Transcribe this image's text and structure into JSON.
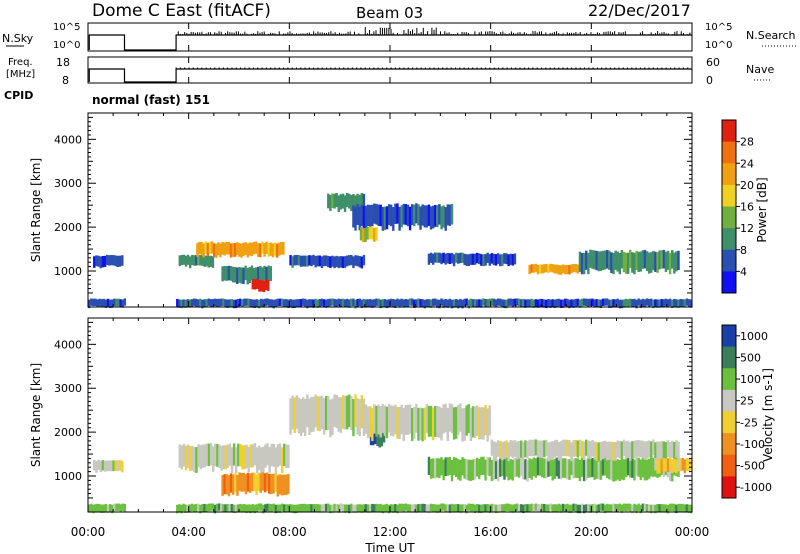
{
  "header": {
    "station": "Dome C East (fitACF)",
    "beam": "Beam 03",
    "date": "22/Dec/2017"
  },
  "strips": {
    "nsky": {
      "label": "N.Sky",
      "ticks": [
        "10^5",
        "10^0"
      ]
    },
    "nsearch": {
      "label": "N.Search",
      "ticks": [
        "10^5",
        "10^0"
      ]
    },
    "freq": {
      "label_line1": "Freq.",
      "label_line2": "[MHz]",
      "ticks": [
        "18",
        "8"
      ]
    },
    "nave": {
      "label": "Nave",
      "ticks": [
        "60",
        "0"
      ]
    },
    "cpid": {
      "label": "CPID",
      "value": "normal (fast) 151"
    }
  },
  "colors": {
    "power": [
      "#1010f0",
      "#2a4fb0",
      "#3f8f6a",
      "#70b040",
      "#f0d020",
      "#f0a010",
      "#f07010",
      "#e02010"
    ],
    "velocity": [
      "#1a3fa8",
      "#3a7f5a",
      "#6cc040",
      "#c8c8c0",
      "#f0d030",
      "#f09020",
      "#f06010",
      "#e01010"
    ]
  },
  "chart_data": [
    {
      "type": "heatmap",
      "title": "Power",
      "xlabel": "Time UT",
      "ylabel": "Slant Range [km]",
      "x_tick_labels": [
        "00:00",
        "04:00",
        "08:00",
        "12:00",
        "16:00",
        "20:00",
        "00:00"
      ],
      "xlim_hours": [
        0,
        24
      ],
      "ylim": [
        180,
        4600
      ],
      "y_ticks": [
        1000,
        2000,
        3000,
        4000
      ],
      "colorbar": {
        "label": "Power [dB]",
        "ticks": [
          "4",
          "8",
          "12",
          "16",
          "20",
          "24",
          "28"
        ],
        "range": [
          0,
          32
        ]
      },
      "data_gap_hours": [
        1.45,
        3.5
      ],
      "echo_regions": [
        {
          "t": [
            0.2,
            1.4
          ],
          "r": [
            1100,
            1350
          ],
          "level": 1
        },
        {
          "t": [
            3.6,
            5.0
          ],
          "r": [
            1100,
            1350
          ],
          "level": 2
        },
        {
          "t": [
            4.3,
            7.8
          ],
          "r": [
            1350,
            1650
          ],
          "level": 5
        },
        {
          "t": [
            5.3,
            7.3
          ],
          "r": [
            750,
            1100
          ],
          "level": 2
        },
        {
          "t": [
            6.5,
            7.2
          ],
          "r": [
            550,
            800
          ],
          "level": 7
        },
        {
          "t": [
            8.0,
            11.0
          ],
          "r": [
            1100,
            1350
          ],
          "level": 1
        },
        {
          "t": [
            9.5,
            11.0
          ],
          "r": [
            2400,
            2750
          ],
          "level": 2
        },
        {
          "t": [
            10.5,
            14.5
          ],
          "r": [
            2000,
            2500
          ],
          "level": 1
        },
        {
          "t": [
            10.8,
            11.5
          ],
          "r": [
            1700,
            2000
          ],
          "level": 4
        },
        {
          "t": [
            13.5,
            17.0
          ],
          "r": [
            1150,
            1400
          ],
          "level": 1
        },
        {
          "t": [
            17.5,
            19.5
          ],
          "r": [
            950,
            1150
          ],
          "level": 5
        },
        {
          "t": [
            19.5,
            23.5
          ],
          "r": [
            1000,
            1450
          ],
          "level": 2
        },
        {
          "t": [
            0.0,
            24.0
          ],
          "r": [
            180,
            360
          ],
          "level": 1
        }
      ]
    },
    {
      "type": "heatmap",
      "title": "Velocity",
      "xlabel": "Time UT",
      "ylabel": "Slant Range [km]",
      "x_tick_labels": [
        "00:00",
        "04:00",
        "08:00",
        "12:00",
        "16:00",
        "20:00",
        "00:00"
      ],
      "xlim_hours": [
        0,
        24
      ],
      "ylim": [
        180,
        4600
      ],
      "y_ticks": [
        1000,
        2000,
        3000,
        4000
      ],
      "colorbar": {
        "label": "Velocity [m s-1]",
        "ticks": [
          "1000",
          "500",
          "100",
          "25",
          "-25",
          "-100",
          "-500",
          "-1000"
        ]
      },
      "data_gap_hours": [
        1.45,
        3.5
      ],
      "echo_regions": [
        {
          "t": [
            0.2,
            1.4
          ],
          "r": [
            1100,
            1350
          ],
          "level": 3
        },
        {
          "t": [
            3.6,
            8.0
          ],
          "r": [
            1150,
            1700
          ],
          "level": 3
        },
        {
          "t": [
            5.3,
            8.0
          ],
          "r": [
            600,
            1050
          ],
          "level": 5
        },
        {
          "t": [
            8.0,
            11.0
          ],
          "r": [
            2000,
            2800
          ],
          "level": 3
        },
        {
          "t": [
            11.2,
            11.8
          ],
          "r": [
            1700,
            2100
          ],
          "level": 1
        },
        {
          "t": [
            11.0,
            16.0
          ],
          "r": [
            1900,
            2600
          ],
          "level": 3
        },
        {
          "t": [
            13.5,
            23.5
          ],
          "r": [
            950,
            1400
          ],
          "level": 2
        },
        {
          "t": [
            16.0,
            23.5
          ],
          "r": [
            1400,
            1800
          ],
          "level": 3
        },
        {
          "t": [
            22.5,
            24.0
          ],
          "r": [
            1100,
            1400
          ],
          "level": 4
        },
        {
          "t": [
            0.0,
            24.0
          ],
          "r": [
            180,
            360
          ],
          "level": 2
        }
      ]
    }
  ]
}
